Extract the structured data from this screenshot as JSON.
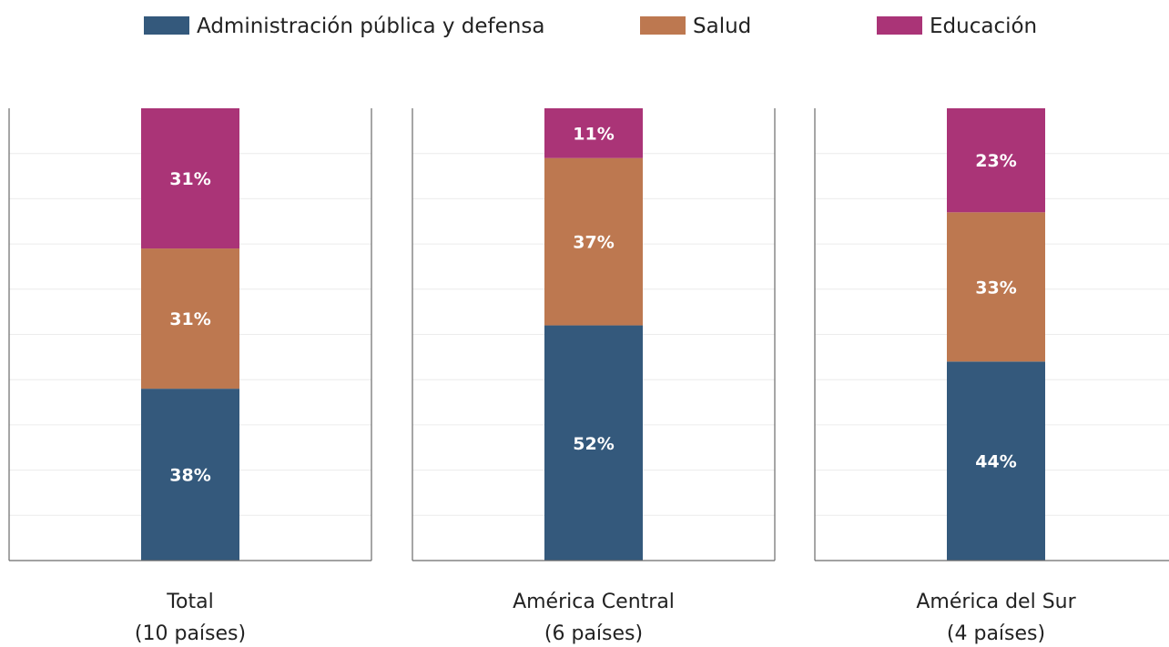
{
  "chart_data": {
    "type": "bar",
    "stacked": true,
    "unit": "%",
    "ylim": [
      0,
      100
    ],
    "grid": true,
    "legend_position": "top",
    "colors": {
      "admin": "#34597c",
      "salud": "#bd7850",
      "educacion": "#aa3477"
    },
    "series": [
      {
        "key": "admin",
        "name": "Administración pública y defensa"
      },
      {
        "key": "salud",
        "name": "Salud"
      },
      {
        "key": "educacion",
        "name": "Educación"
      }
    ],
    "panels": [
      {
        "label_line1": "Total",
        "label_line2": "(10 países)",
        "values": {
          "admin": 38,
          "salud": 31,
          "educacion": 31
        }
      },
      {
        "label_line1": "América Central",
        "label_line2": "(6 países)",
        "values": {
          "admin": 52,
          "salud": 37,
          "educacion": 11
        }
      },
      {
        "label_line1": "América del Sur",
        "label_line2": "(4 países)",
        "values": {
          "admin": 44,
          "salud": 33,
          "educacion": 23
        }
      }
    ]
  }
}
